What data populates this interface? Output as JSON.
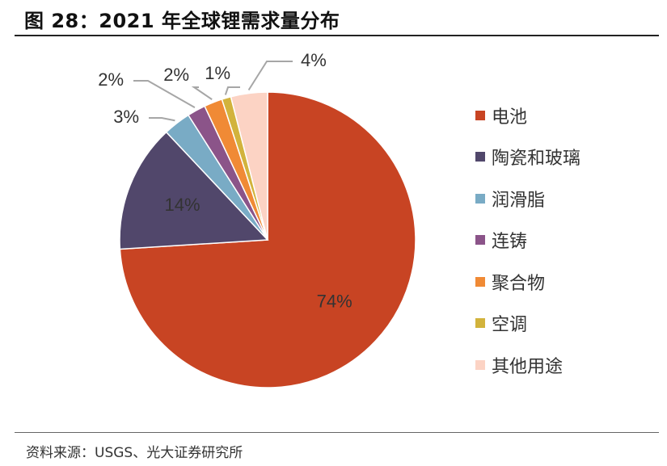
{
  "header": {
    "title": "图 28：2021 年全球锂需求量分布"
  },
  "footer": {
    "source": "资料来源：USGS、光大证券研究所"
  },
  "chart_data": {
    "type": "pie",
    "title": "图 28：2021 年全球锂需求量分布",
    "legend_position": "right",
    "slices": [
      {
        "label": "电池",
        "value": 74,
        "display": "74%",
        "color": "#C84423"
      },
      {
        "label": "陶瓷和玻璃",
        "value": 14,
        "display": "14%",
        "color": "#51476B"
      },
      {
        "label": "润滑脂",
        "value": 3,
        "display": "3%",
        "color": "#79ABC5"
      },
      {
        "label": "连铸",
        "value": 2,
        "display": "2%",
        "color": "#8B5489"
      },
      {
        "label": "聚合物",
        "value": 2,
        "display": "2%",
        "color": "#F08A35"
      },
      {
        "label": "空调",
        "value": 1,
        "display": "1%",
        "color": "#D2B33C"
      },
      {
        "label": "其他用途",
        "value": 4,
        "display": "4%",
        "color": "#FCD3C4"
      }
    ]
  }
}
